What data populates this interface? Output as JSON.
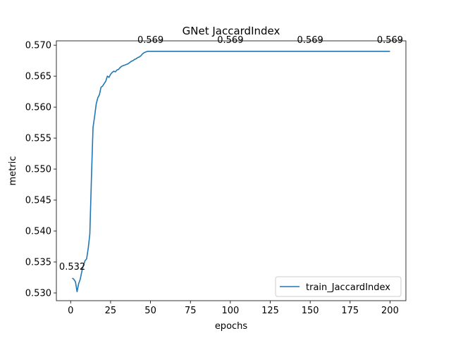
{
  "chart_data": {
    "type": "line",
    "title": "GNet JaccardIndex",
    "xlabel": "epochs",
    "ylabel": "metric",
    "xlim": [
      -8.95,
      209.95
    ],
    "ylim": [
      0.52875,
      0.5707
    ],
    "xticks": [
      0,
      25,
      50,
      75,
      100,
      125,
      150,
      175,
      200
    ],
    "yticks": [
      0.53,
      0.535,
      0.54,
      0.545,
      0.55,
      0.555,
      0.56,
      0.565,
      0.57
    ],
    "ytick_labels": [
      "0.530",
      "0.535",
      "0.540",
      "0.545",
      "0.550",
      "0.555",
      "0.560",
      "0.565",
      "0.570"
    ],
    "grid": false,
    "legend_position": "lower right",
    "colors": {
      "line": "#1f77b4"
    },
    "series": [
      {
        "name": "train_JaccardIndex",
        "x": [
          1,
          2,
          3,
          4,
          5,
          6,
          7,
          8,
          9,
          10,
          11,
          12,
          13,
          14,
          15,
          16,
          17,
          18,
          19,
          20,
          21,
          22,
          23,
          24,
          25,
          26,
          27,
          28,
          29,
          30,
          31,
          32,
          33,
          34,
          35,
          36,
          37,
          38,
          39,
          40,
          41,
          42,
          43,
          44,
          45,
          46,
          47,
          48,
          49,
          50,
          51,
          52,
          53,
          55,
          60,
          70,
          80,
          90,
          100,
          110,
          120,
          130,
          140,
          150,
          160,
          170,
          180,
          190,
          200
        ],
        "y": [
          0.5324,
          0.5322,
          0.5318,
          0.5302,
          0.5315,
          0.5322,
          0.5335,
          0.5345,
          0.5352,
          0.5355,
          0.5372,
          0.5395,
          0.5485,
          0.5567,
          0.5585,
          0.5605,
          0.5615,
          0.562,
          0.5632,
          0.5634,
          0.5638,
          0.5642,
          0.565,
          0.5648,
          0.5653,
          0.5656,
          0.5658,
          0.5657,
          0.566,
          0.5661,
          0.5664,
          0.5666,
          0.5667,
          0.5668,
          0.5669,
          0.567,
          0.5672,
          0.5674,
          0.5675,
          0.5677,
          0.5678,
          0.568,
          0.5681,
          0.5683,
          0.5686,
          0.5688,
          0.5689,
          0.569,
          0.569,
          0.569,
          0.569,
          0.569,
          0.569,
          0.569,
          0.569,
          0.569,
          0.569,
          0.569,
          0.569,
          0.569,
          0.569,
          0.569,
          0.569,
          0.569,
          0.569,
          0.569,
          0.569,
          0.569,
          0.569
        ]
      }
    ],
    "annotations": [
      {
        "x": 1,
        "y": 0.5324,
        "text": "0.532"
      },
      {
        "x": 50,
        "y": 0.569,
        "text": "0.569"
      },
      {
        "x": 100,
        "y": 0.569,
        "text": "0.569"
      },
      {
        "x": 150,
        "y": 0.569,
        "text": "0.569"
      },
      {
        "x": 200,
        "y": 0.569,
        "text": "0.569"
      }
    ]
  }
}
